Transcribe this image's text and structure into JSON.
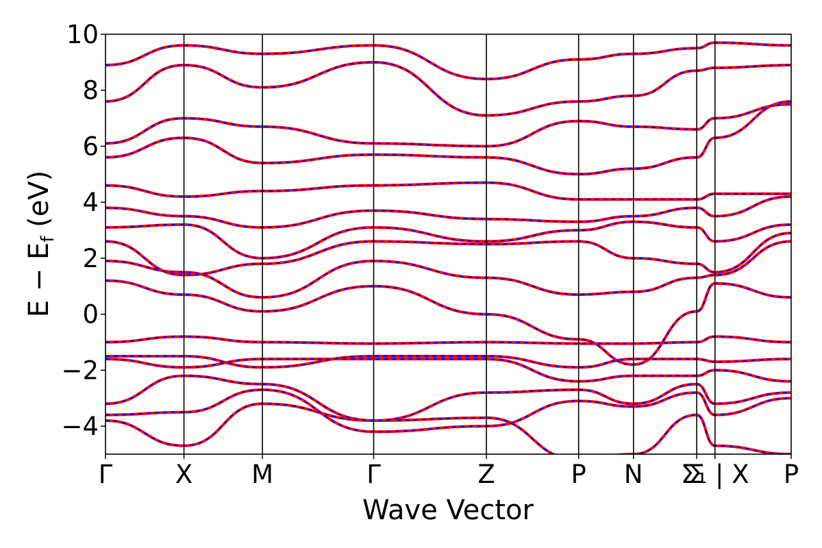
{
  "chart_data": {
    "type": "line",
    "title": "",
    "xlabel": "Wave Vector",
    "ylabel_parts": {
      "main": "E − E",
      "sub": "f",
      "unit": " (eV)"
    },
    "ylim": [
      -5,
      10
    ],
    "yticks": [
      -4,
      -2,
      0,
      2,
      4,
      6,
      8,
      10
    ],
    "ytick_labels": [
      "−4",
      "−2",
      "0",
      "2",
      "4",
      "6",
      "8",
      "10"
    ],
    "xlim": [
      0,
      9.0
    ],
    "kpoints": [
      {
        "label": "Γ",
        "x": 0.0
      },
      {
        "label": "X",
        "x": 1.03
      },
      {
        "label": "M",
        "x": 2.06
      },
      {
        "label": "Γ",
        "x": 3.52
      },
      {
        "label": "Z",
        "x": 5.0
      },
      {
        "label": "P",
        "x": 6.21
      },
      {
        "label": "N",
        "x": 6.93
      },
      {
        "label": "Σ",
        "x": 7.76
      },
      {
        "label": "Σ₁ | X",
        "x": 8.0
      },
      {
        "label": "P",
        "x": 9.0
      }
    ],
    "series_styles": [
      {
        "color": "#ff0000",
        "style": "solid",
        "width": 4
      },
      {
        "color": "#0000ff",
        "style": "dashed",
        "width": 2.2
      }
    ],
    "bands_segments": [
      {
        "x": [
          0.0,
          1.03,
          2.06,
          3.52,
          5.0,
          6.21,
          6.93,
          7.76,
          8.0,
          9.0
        ],
        "y": [
          -3.8,
          -4.7,
          -3.2,
          -3.8,
          -3.7,
          -5.2,
          -5.0,
          -3.6,
          -4.7,
          -5.0
        ]
      },
      {
        "x": [
          0.0,
          1.03,
          2.06,
          3.52,
          5.0,
          6.21,
          6.93,
          7.76,
          8.0,
          9.0
        ],
        "y": [
          -3.6,
          -3.5,
          -2.7,
          -4.2,
          -4.0,
          -3.1,
          -3.3,
          -2.8,
          -3.6,
          -3.0
        ]
      },
      {
        "x": [
          0.0,
          1.03,
          2.06,
          3.52,
          5.0,
          6.21,
          6.93,
          7.76,
          8.0,
          9.0
        ],
        "y": [
          -3.2,
          -2.2,
          -2.5,
          -3.8,
          -2.8,
          -2.7,
          -3.2,
          -2.5,
          -3.2,
          -2.8
        ]
      },
      {
        "x": [
          0.0,
          1.03,
          2.06,
          3.52,
          5.0,
          6.21,
          6.93,
          7.76,
          8.0,
          9.0
        ],
        "y": [
          -1.6,
          -1.9,
          -1.6,
          -1.6,
          -1.6,
          -2.4,
          -2.2,
          -2.2,
          -2.0,
          -2.4
        ]
      },
      {
        "x": [
          0.0,
          1.03,
          2.06,
          3.52,
          5.0,
          6.21,
          6.93,
          7.76,
          8.0,
          9.0
        ],
        "y": [
          -1.5,
          -1.5,
          -1.9,
          -1.5,
          -1.5,
          -1.9,
          -1.6,
          -1.6,
          -1.7,
          -1.6
        ]
      },
      {
        "x": [
          0.0,
          1.03,
          2.06,
          3.52,
          5.0,
          6.21,
          6.93,
          7.76,
          8.0,
          9.0
        ],
        "y": [
          -1.0,
          -0.8,
          -1.0,
          -1.05,
          -1.0,
          -1.05,
          -1.05,
          -1.0,
          -0.8,
          -1.0
        ]
      },
      {
        "x": [
          0.0,
          1.03,
          2.06,
          3.52,
          5.0,
          6.21,
          6.93,
          7.76,
          8.0,
          9.0
        ],
        "y": [
          1.2,
          0.7,
          0.1,
          1.0,
          0.0,
          -0.9,
          -1.8,
          0.1,
          1.1,
          0.6
        ]
      },
      {
        "x": [
          0.0,
          1.03,
          2.06,
          3.52,
          5.0,
          6.21,
          6.93,
          7.76,
          8.0,
          9.0
        ],
        "y": [
          1.9,
          1.5,
          0.6,
          1.9,
          1.3,
          0.7,
          0.8,
          1.3,
          1.4,
          2.6
        ]
      },
      {
        "x": [
          0.0,
          1.03,
          2.06,
          3.52,
          5.0,
          6.21,
          6.93,
          7.76,
          8.0,
          9.0
        ],
        "y": [
          2.6,
          1.4,
          1.8,
          2.6,
          2.5,
          2.6,
          2.0,
          1.8,
          1.5,
          2.9
        ]
      },
      {
        "x": [
          0.0,
          1.03,
          2.06,
          3.52,
          5.0,
          6.21,
          6.93,
          7.76,
          8.0,
          9.0
        ],
        "y": [
          3.1,
          3.2,
          2.0,
          3.1,
          2.6,
          3.0,
          3.3,
          3.1,
          2.6,
          3.2
        ]
      },
      {
        "x": [
          0.0,
          1.03,
          2.06,
          3.52,
          5.0,
          6.21,
          6.93,
          7.76,
          8.0,
          9.0
        ],
        "y": [
          3.8,
          3.5,
          3.1,
          3.7,
          3.4,
          3.3,
          3.5,
          3.8,
          3.5,
          4.2
        ]
      },
      {
        "x": [
          0.0,
          1.03,
          2.06,
          3.52,
          5.0,
          6.21,
          6.93,
          7.76,
          8.0,
          9.0
        ],
        "y": [
          4.6,
          4.2,
          4.4,
          4.6,
          4.7,
          4.1,
          4.1,
          4.1,
          4.3,
          4.3
        ]
      },
      {
        "x": [
          0.0,
          1.03,
          2.06,
          3.52,
          5.0,
          6.21,
          6.93,
          7.76,
          8.0,
          9.0
        ],
        "y": [
          5.6,
          6.3,
          5.4,
          5.7,
          5.6,
          5.0,
          5.2,
          5.6,
          6.3,
          7.6
        ]
      },
      {
        "x": [
          0.0,
          1.03,
          2.06,
          3.52,
          5.0,
          6.21,
          6.93,
          7.76,
          8.0,
          9.0
        ],
        "y": [
          6.1,
          7.0,
          6.7,
          6.1,
          6.0,
          6.9,
          6.7,
          6.6,
          7.0,
          7.5
        ]
      },
      {
        "x": [
          0.0,
          1.03,
          2.06,
          3.52,
          5.0,
          6.21,
          6.93,
          7.76,
          8.0,
          9.0
        ],
        "y": [
          7.6,
          8.9,
          8.1,
          9.0,
          7.1,
          7.6,
          7.8,
          8.7,
          8.8,
          8.9
        ]
      },
      {
        "x": [
          0.0,
          1.03,
          2.06,
          3.52,
          5.0,
          6.21,
          6.93,
          7.76,
          8.0,
          9.0
        ],
        "y": [
          8.9,
          9.6,
          9.3,
          9.6,
          8.4,
          9.1,
          9.3,
          9.5,
          9.7,
          9.6
        ]
      }
    ]
  }
}
